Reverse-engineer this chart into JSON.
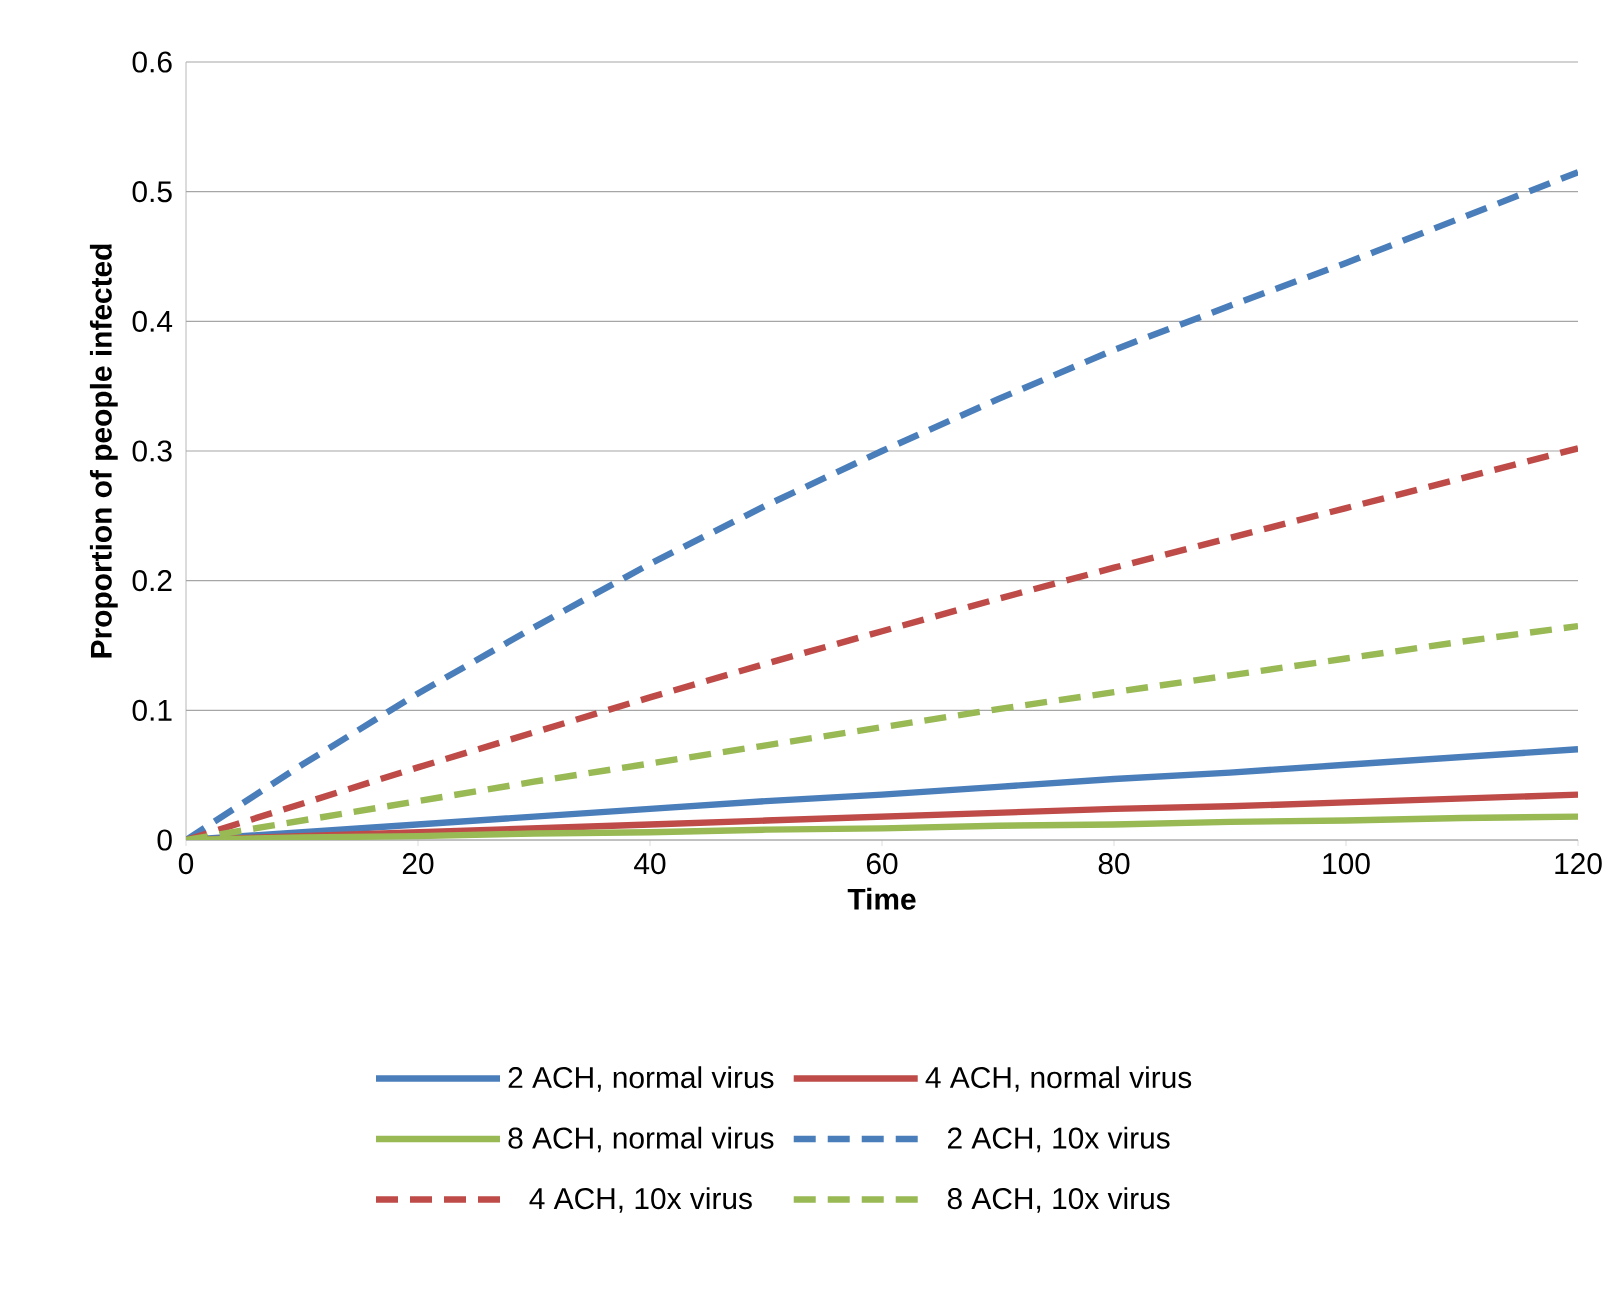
{
  "chart_data": {
    "type": "line",
    "xlabel": "Time",
    "ylabel": "Proportion of people infected",
    "x": [
      0,
      10,
      20,
      30,
      40,
      50,
      60,
      70,
      80,
      90,
      100,
      110,
      120
    ],
    "series": [
      {
        "name": "2 ACH, normal virus",
        "color": "#4a7ebb",
        "line_style": "solid",
        "values": [
          0,
          0.006,
          0.012,
          0.018,
          0.024,
          0.03,
          0.035,
          0.041,
          0.047,
          0.052,
          0.058,
          0.064,
          0.07
        ]
      },
      {
        "name": "4 ACH, normal virus",
        "color": "#be4b48",
        "line_style": "solid",
        "values": [
          0,
          0.003,
          0.006,
          0.009,
          0.012,
          0.015,
          0.018,
          0.021,
          0.024,
          0.026,
          0.029,
          0.032,
          0.035
        ]
      },
      {
        "name": "8 ACH, normal virus",
        "color": "#98b954",
        "line_style": "solid",
        "values": [
          0,
          0.002,
          0.003,
          0.005,
          0.006,
          0.008,
          0.009,
          0.011,
          0.012,
          0.014,
          0.015,
          0.017,
          0.018
        ]
      },
      {
        "name": "2 ACH, 10x virus",
        "color": "#4a7ebb",
        "line_style": "dashed",
        "values": [
          0,
          0.058,
          0.113,
          0.164,
          0.213,
          0.258,
          0.3,
          0.34,
          0.378,
          0.412,
          0.445,
          0.48,
          0.515
        ]
      },
      {
        "name": "4 ACH, 10x virus",
        "color": "#be4b48",
        "line_style": "dashed",
        "values": [
          0,
          0.028,
          0.056,
          0.083,
          0.11,
          0.136,
          0.161,
          0.186,
          0.21,
          0.233,
          0.256,
          0.279,
          0.302
        ]
      },
      {
        "name": "8 ACH, 10x virus",
        "color": "#98b954",
        "line_style": "dashed",
        "values": [
          0,
          0.015,
          0.03,
          0.045,
          0.059,
          0.073,
          0.087,
          0.101,
          0.114,
          0.127,
          0.14,
          0.153,
          0.165
        ]
      }
    ],
    "xlim": [
      0,
      120
    ],
    "ylim": [
      0,
      0.6
    ],
    "xticks": [
      0,
      20,
      40,
      60,
      80,
      100,
      120
    ],
    "yticks": [
      0,
      0.1,
      0.2,
      0.3,
      0.4,
      0.5,
      0.6
    ],
    "grid": "y",
    "legend": "bottom",
    "marker": "none"
  }
}
